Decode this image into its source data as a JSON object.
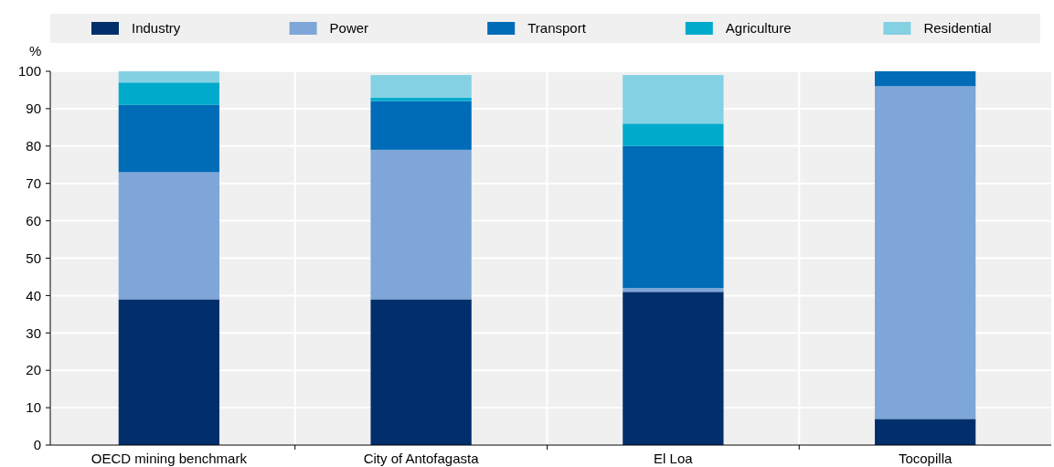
{
  "chart_data": {
    "type": "bar",
    "stacked": true,
    "ylabel": "%",
    "categories": [
      "OECD mining benchmark",
      "City of Antofagasta",
      "El Loa",
      "Tocopilla"
    ],
    "series": [
      {
        "name": "Industry",
        "color": "#002f6c",
        "values": [
          39,
          39,
          41,
          7
        ]
      },
      {
        "name": "Power",
        "color": "#7fa6d8",
        "values": [
          34,
          40,
          1,
          89
        ]
      },
      {
        "name": "Transport",
        "color": "#006bb6",
        "values": [
          18,
          13,
          38,
          4
        ]
      },
      {
        "name": "Agriculture",
        "color": "#00aacc",
        "values": [
          6,
          1,
          6,
          0
        ]
      },
      {
        "name": "Residential",
        "color": "#84d1e4",
        "values": [
          3,
          6,
          13,
          0
        ]
      }
    ],
    "ylim": [
      0,
      100
    ],
    "yticks": [
      0,
      10,
      20,
      30,
      40,
      50,
      60,
      70,
      80,
      90,
      100
    ],
    "grid": true,
    "legend": "top"
  }
}
